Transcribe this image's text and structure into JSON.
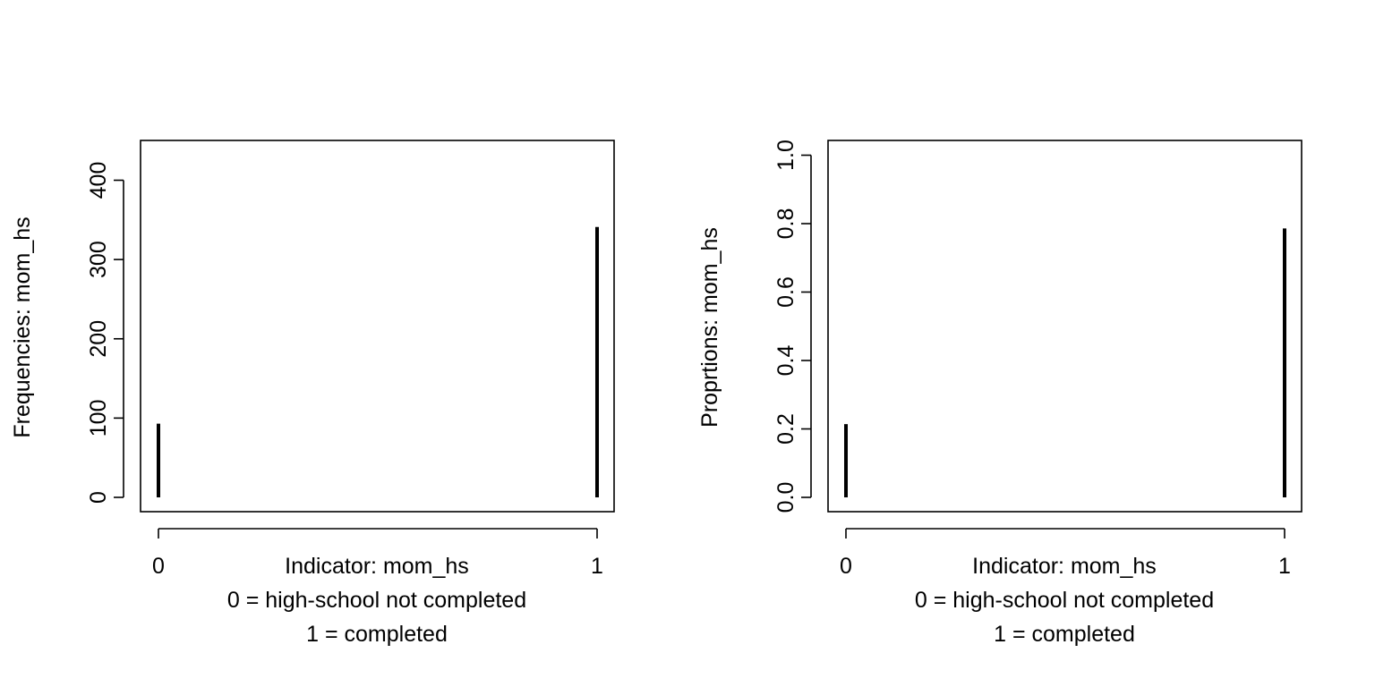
{
  "chart_data": [
    {
      "type": "bar",
      "x": [
        0,
        1
      ],
      "values": [
        93,
        341
      ],
      "xlabel": [
        "Indicator: mom_hs",
        "0 = high-school not completed",
        "1 = completed"
      ],
      "ylabel": "Frequencies: mom_hs",
      "ylim": [
        0,
        450
      ],
      "yticks": [
        0,
        100,
        200,
        300,
        400
      ],
      "xticks": [
        0,
        1
      ],
      "grid": false,
      "color": "#000000"
    },
    {
      "type": "bar",
      "x": [
        0,
        1
      ],
      "values": [
        0.214,
        0.786
      ],
      "xlabel": [
        "Indicator: mom_hs",
        "0 = high-school not completed",
        "1 = completed"
      ],
      "ylabel": "Proprtions: mom_hs",
      "ylim": [
        0,
        1.04
      ],
      "yticks": [
        "0.0",
        "0.2",
        "0.4",
        "0.6",
        "0.8",
        "1.0"
      ],
      "xticks": [
        0,
        1
      ],
      "grid": false,
      "color": "#000000"
    }
  ]
}
